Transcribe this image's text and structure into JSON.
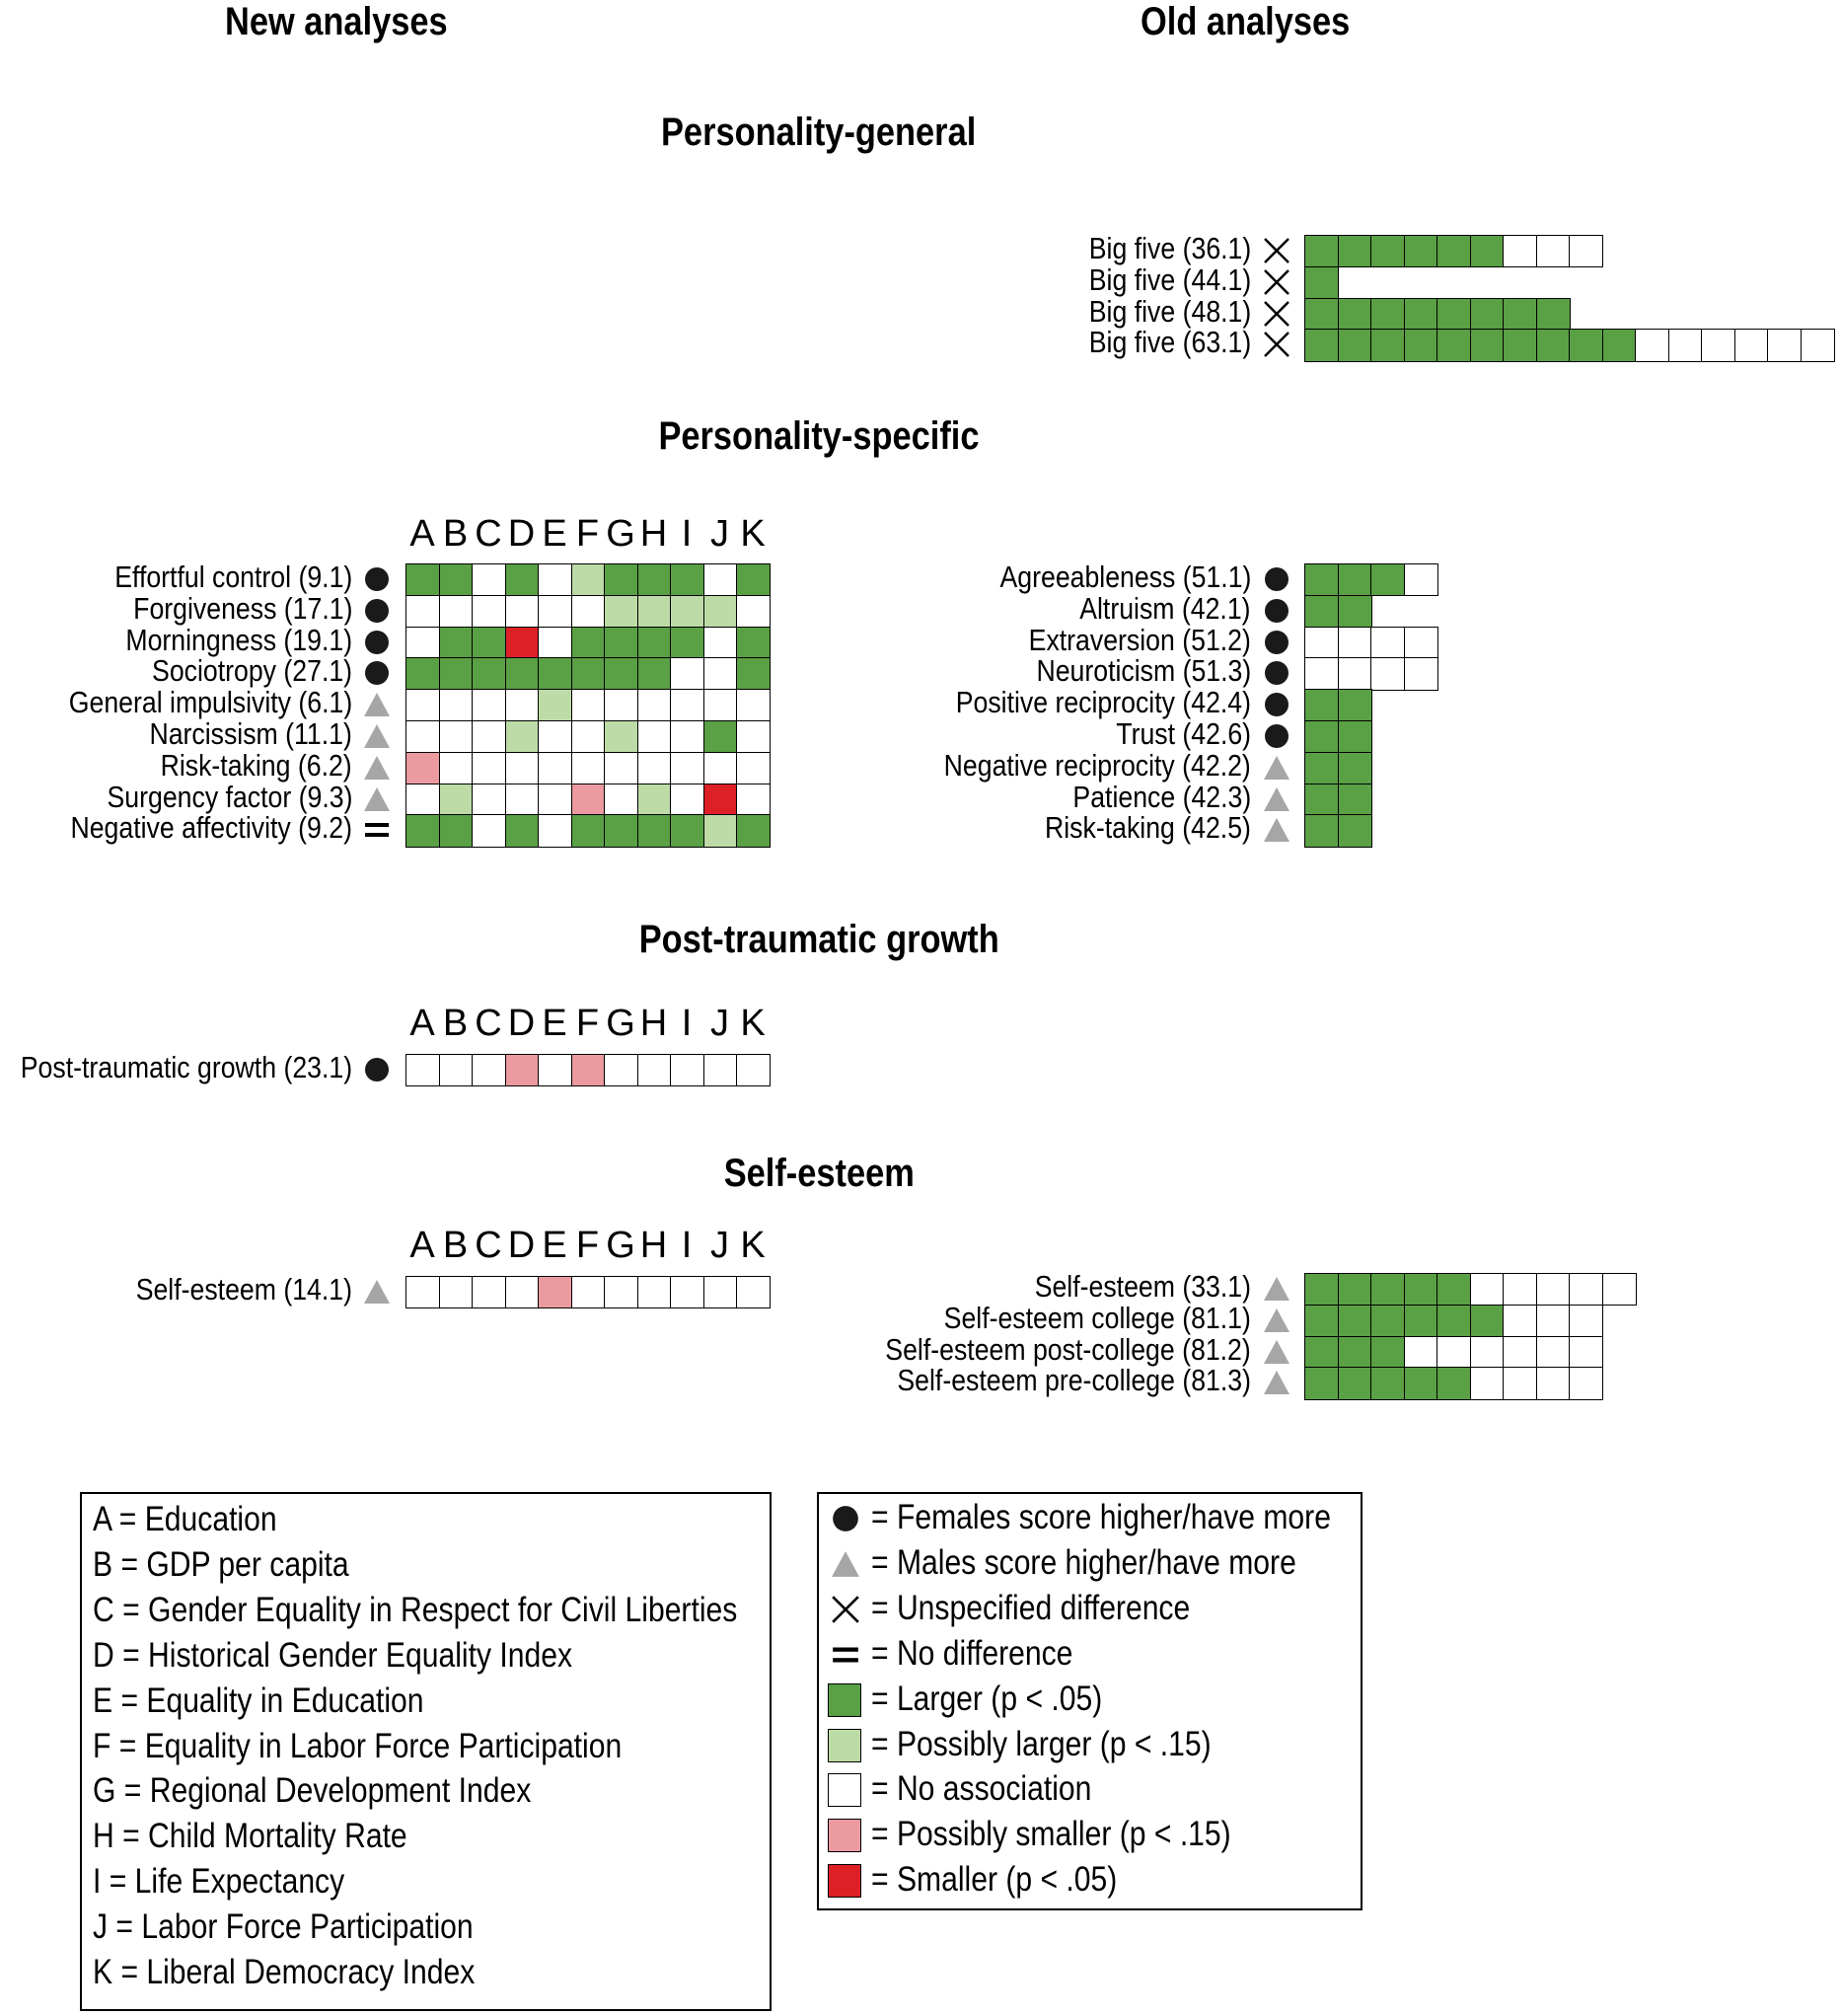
{
  "headers": {
    "new": "New analyses",
    "old": "Old analyses"
  },
  "sections": {
    "general": "Personality-general",
    "specific": "Personality-specific",
    "ptg": "Post-traumatic growth",
    "self_esteem": "Self-esteem"
  },
  "columns": [
    "A",
    "B",
    "C",
    "D",
    "E",
    "F",
    "G",
    "H",
    "I",
    "J",
    "K"
  ],
  "colors": {
    "L": "#5aa045",
    "P": "#bddba7",
    "N": "#ffffff",
    "S": "#eb9aa0",
    "R": "#dd2026",
    "circle": "#1a1a1a",
    "triangle": "#a6a6a6"
  },
  "grids": {
    "general_old": [
      {
        "label": "Big five (36.1)",
        "sym": "cross",
        "cells": "LLLLLLNNN"
      },
      {
        "label": "Big five (44.1)",
        "sym": "cross",
        "cells": "L"
      },
      {
        "label": "Big five (48.1)",
        "sym": "cross",
        "cells": "LLLLLLLL"
      },
      {
        "label": "Big five (63.1)",
        "sym": "cross",
        "cells": "LLLLLLLLLLNNNNNN"
      }
    ],
    "specific_new": [
      {
        "label": "Effortful control (9.1)",
        "sym": "circle",
        "cells": "LLNLNPLLLNL"
      },
      {
        "label": "Forgiveness (17.1)",
        "sym": "circle",
        "cells": "NNNNNNPPPPN"
      },
      {
        "label": "Morningness (19.1)",
        "sym": "circle",
        "cells": "NLLRNLLLLNL"
      },
      {
        "label": "Sociotropy (27.1)",
        "sym": "circle",
        "cells": "LLLLLLLLNNL"
      },
      {
        "label": "General impulsivity (6.1)",
        "sym": "triangle",
        "cells": "NNNNPNNNNNN"
      },
      {
        "label": "Narcissism (11.1)",
        "sym": "triangle",
        "cells": "NNNPNNPNNLN"
      },
      {
        "label": "Risk-taking (6.2)",
        "sym": "triangle",
        "cells": "SNNNNNNNNNN"
      },
      {
        "label": "Surgency factor (9.3)",
        "sym": "triangle",
        "cells": "NPNNNSNPNRN"
      },
      {
        "label": "Negative affectivity (9.2)",
        "sym": "equals",
        "cells": "LLNLNLLLLPL"
      }
    ],
    "specific_old": [
      {
        "label": "Agreeableness (51.1)",
        "sym": "circle",
        "cells": "LLLN"
      },
      {
        "label": "Altruism (42.1)",
        "sym": "circle",
        "cells": "LL"
      },
      {
        "label": "Extraversion (51.2)",
        "sym": "circle",
        "cells": "NNNN"
      },
      {
        "label": "Neuroticism (51.3)",
        "sym": "circle",
        "cells": "NNNN"
      },
      {
        "label": "Positive reciprocity (42.4)",
        "sym": "circle",
        "cells": "LL"
      },
      {
        "label": "Trust (42.6)",
        "sym": "circle",
        "cells": "LL"
      },
      {
        "label": "Negative reciprocity (42.2)",
        "sym": "triangle",
        "cells": "LL"
      },
      {
        "label": "Patience (42.3)",
        "sym": "triangle",
        "cells": "LL"
      },
      {
        "label": "Risk-taking (42.5)",
        "sym": "triangle",
        "cells": "LL"
      }
    ],
    "ptg_new": [
      {
        "label": "Post-traumatic growth (23.1)",
        "sym": "circle",
        "cells": "NNNSNSNNNNN"
      }
    ],
    "se_new": [
      {
        "label": "Self-esteem (14.1)",
        "sym": "triangle",
        "cells": "NNNNSNNNNNN"
      }
    ],
    "se_old": [
      {
        "label": "Self-esteem (33.1)",
        "sym": "triangle",
        "cells": "LLLLLNNNNN"
      },
      {
        "label": "Self-esteem college (81.1)",
        "sym": "triangle",
        "cells": "LLLLLLNNN"
      },
      {
        "label": "Self-esteem post-college (81.2)",
        "sym": "triangle",
        "cells": "LLLNNNNNN"
      },
      {
        "label": "Self-esteem pre-college (81.3)",
        "sym": "triangle",
        "cells": "LLLLLNNNN"
      }
    ]
  },
  "legend_left": [
    "A = Education",
    "B = GDP per capita",
    "C = Gender Equality in Respect for Civil Liberties",
    "D = Historical Gender Equality Index",
    "E = Equality in Education",
    "F = Equality in Labor Force Participation",
    "G = Regional Development Index",
    "H = Child Mortality Rate",
    "I = Life Expectancy",
    "J = Labor Force Participation",
    "K = Liberal Democracy Index"
  ],
  "legend_right": [
    {
      "sym": "circle",
      "text": "= Females score higher/have more"
    },
    {
      "sym": "triangle",
      "text": "= Males score higher/have more"
    },
    {
      "sym": "cross",
      "text": "= Unspecified difference"
    },
    {
      "sym": "equals",
      "text": "= No difference"
    },
    {
      "sym": "L",
      "text": "= Larger (p < .05)"
    },
    {
      "sym": "P",
      "text": "= Possibly larger (p < .15)"
    },
    {
      "sym": "N",
      "text": "= No association"
    },
    {
      "sym": "S",
      "text": "= Possibly smaller (p < .15)"
    },
    {
      "sym": "R",
      "text": "= Smaller (p < .05)"
    }
  ]
}
